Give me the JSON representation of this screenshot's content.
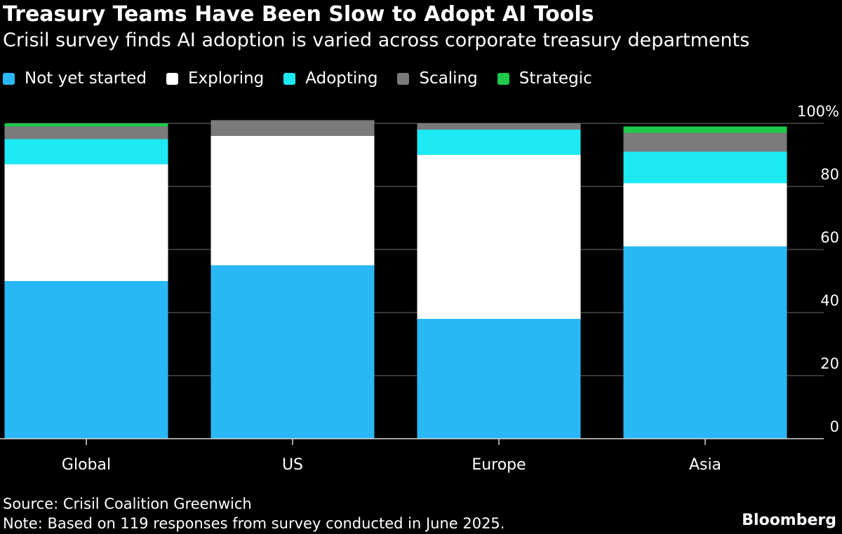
{
  "header": {
    "title": "Treasury Teams Have Been Slow to Adopt AI Tools",
    "subtitle": "Crisil survey finds AI adoption is varied across corporate treasury departments"
  },
  "footer": {
    "source": "Source: Crisil Coalition Greenwich",
    "note": "Note: Based on 119 responses from survey conducted in June 2025.",
    "brand": "Bloomberg"
  },
  "chart_data": {
    "type": "bar",
    "stacked": true,
    "title": "Treasury Teams Have Been Slow to Adopt AI Tools",
    "subtitle": "Crisil survey finds AI adoption is varied across corporate treasury departments",
    "categories": [
      "Global",
      "US",
      "Europe",
      "Asia"
    ],
    "series": [
      {
        "name": "Not yet started",
        "color": "#29b8f5",
        "values": [
          50,
          55,
          38,
          61
        ]
      },
      {
        "name": "Exploring",
        "color": "#ffffff",
        "values": [
          37,
          41,
          52,
          20
        ]
      },
      {
        "name": "Adopting",
        "color": "#1de9f5",
        "values": [
          8,
          0,
          8,
          10
        ]
      },
      {
        "name": "Scaling",
        "color": "#7a7a7a",
        "values": [
          4,
          5,
          2,
          6
        ]
      },
      {
        "name": "Strategic",
        "color": "#1ec94b",
        "values": [
          1,
          0,
          0,
          2
        ]
      }
    ],
    "ylim": [
      0,
      100
    ],
    "yticks": [
      0,
      20,
      40,
      60,
      80,
      100
    ],
    "ytick_labels": [
      "0",
      "20",
      "40",
      "60",
      "80",
      "100%"
    ],
    "y_axis_side": "right",
    "gridlines": true,
    "legend_position": "top-left",
    "xlabel": "",
    "ylabel": ""
  }
}
